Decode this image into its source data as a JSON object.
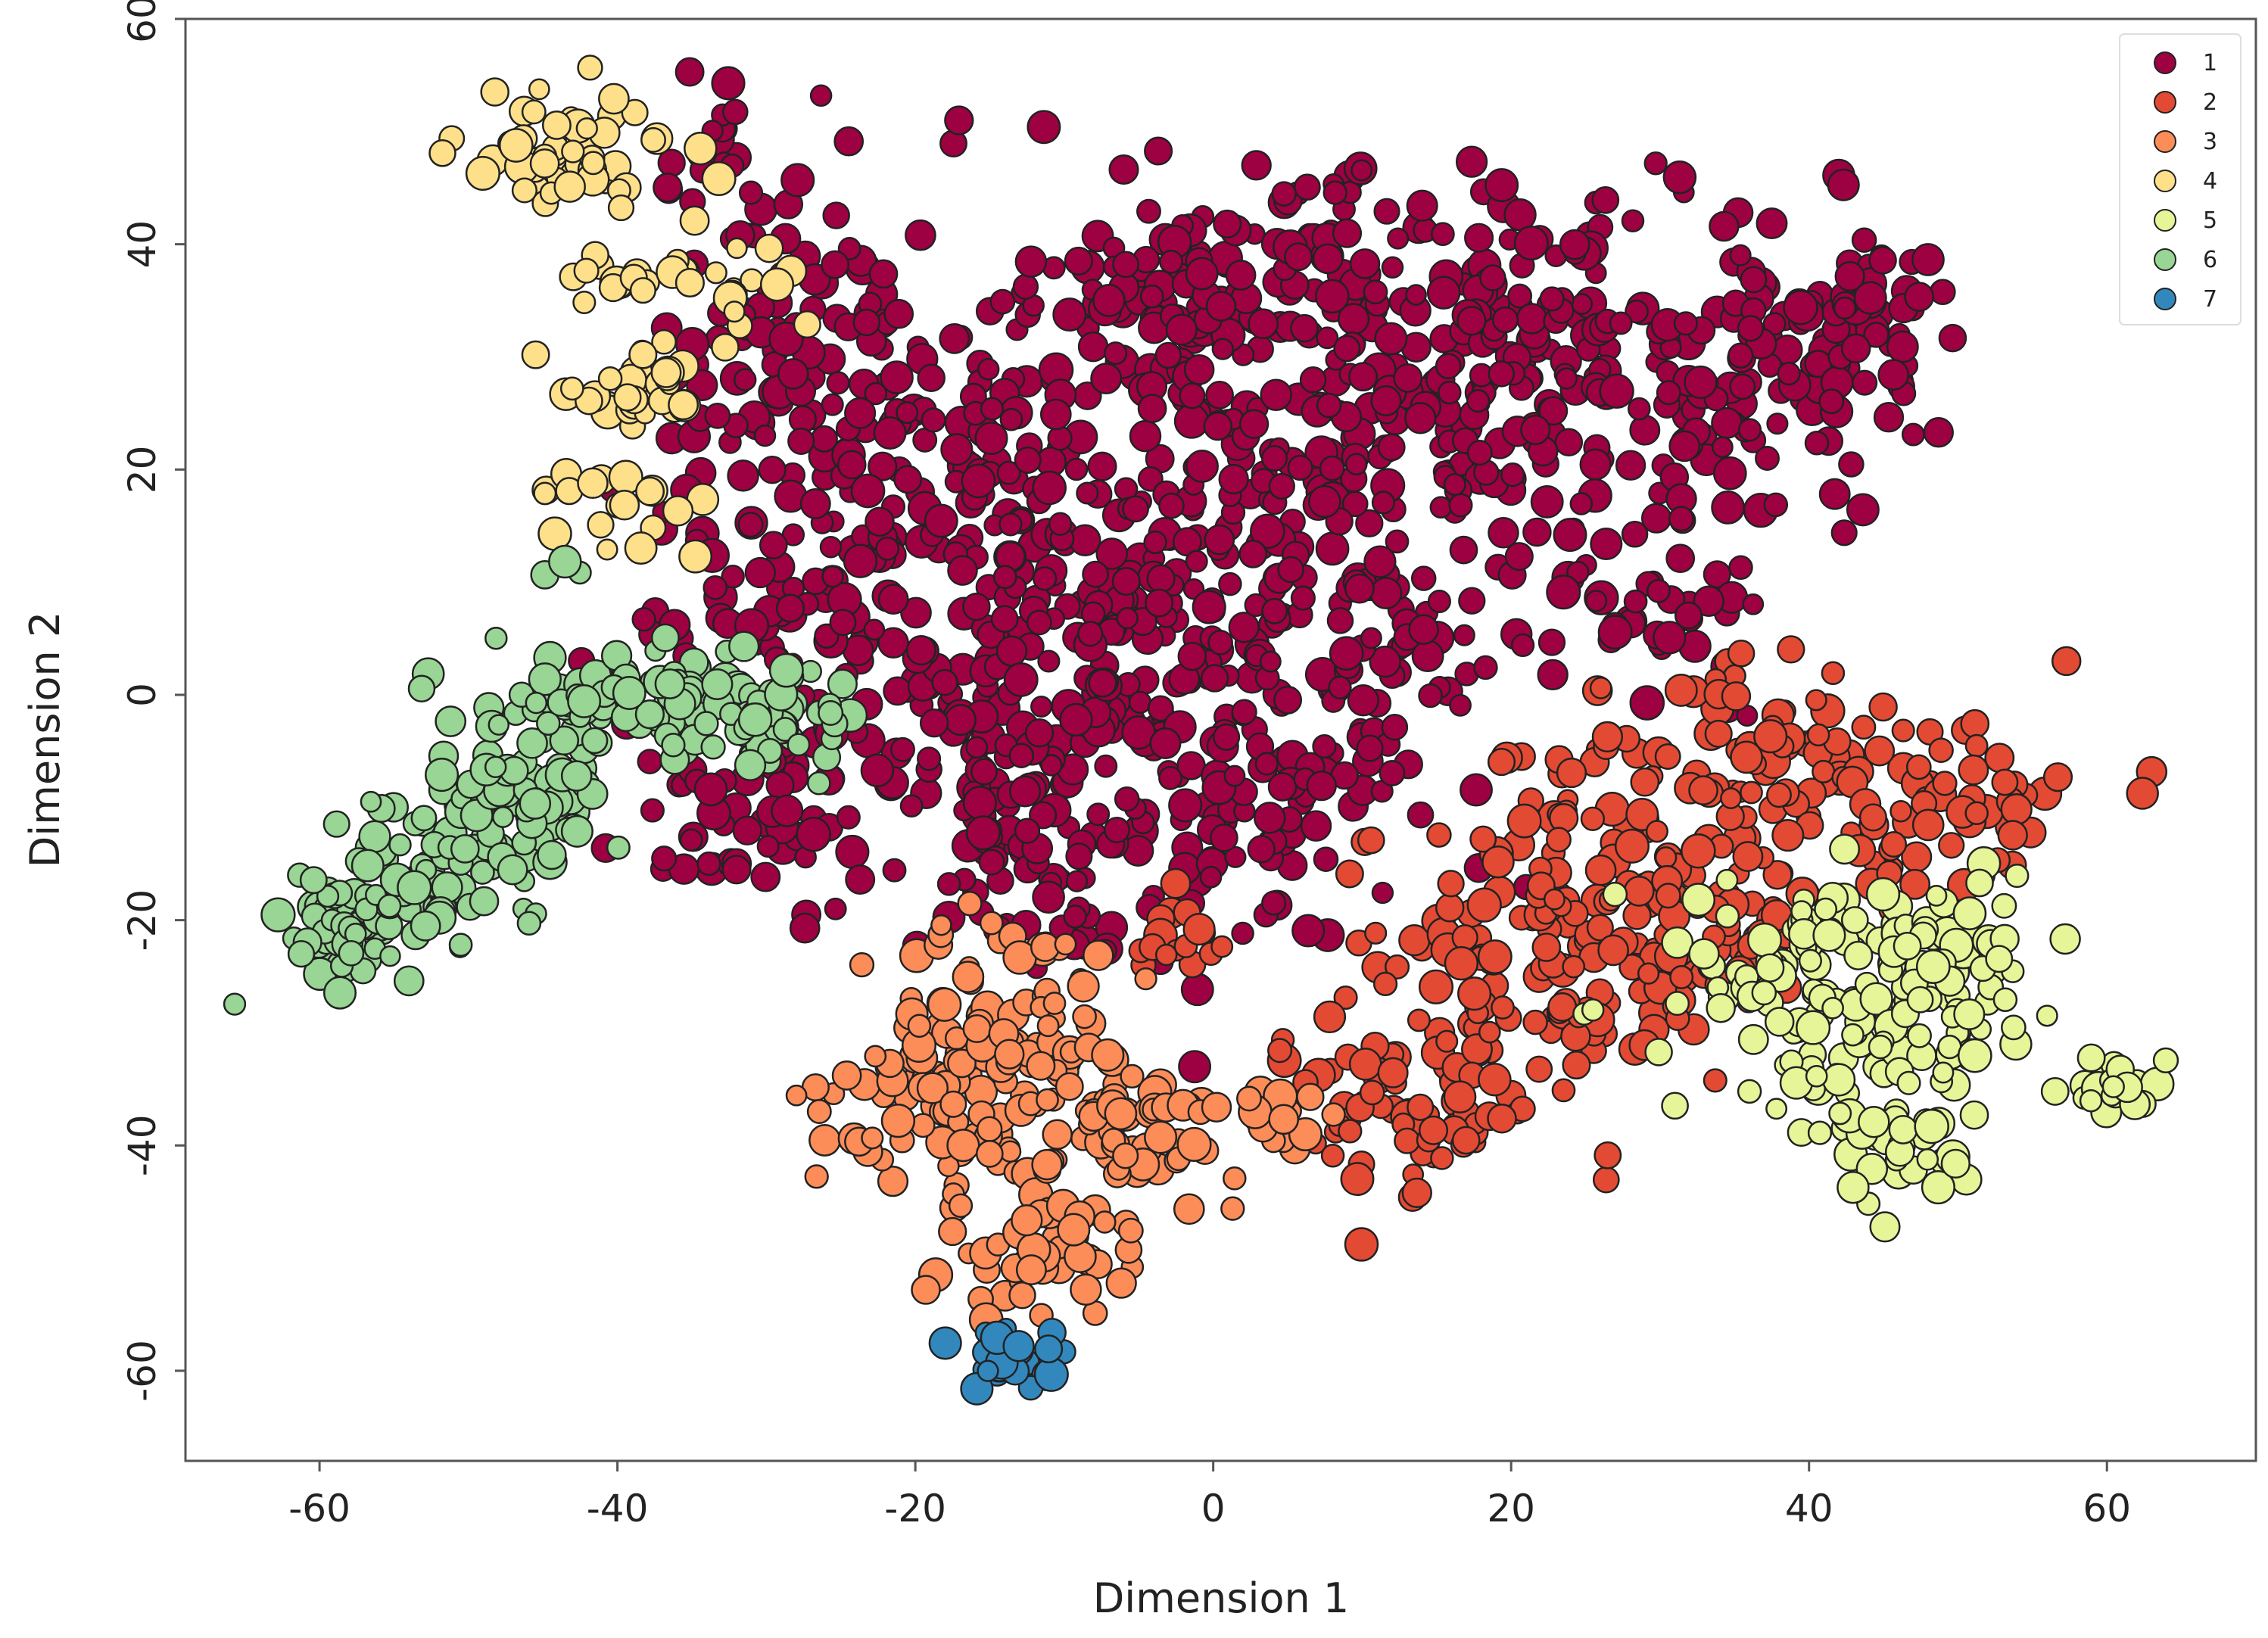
{
  "chart_data": {
    "type": "scatter",
    "title": "",
    "xlabel": "Dimension 1",
    "ylabel": "Dimension 2",
    "xlim": [
      -69,
      70
    ],
    "ylim": [
      -68,
      60
    ],
    "xticks": [
      -60,
      -40,
      -20,
      0,
      20,
      40,
      60
    ],
    "yticks": [
      -60,
      -40,
      -20,
      0,
      20,
      40,
      60
    ],
    "grid": false,
    "legend_position": "top-right",
    "marker_edge_color": "#222222",
    "series": [
      {
        "name": "1",
        "color": "#9e0142",
        "blobs": [
          {
            "cx": -28,
            "cy": 30,
            "sx": 4,
            "sy": 8,
            "n": 80
          },
          {
            "cx": -20,
            "cy": 25,
            "sx": 5,
            "sy": 10,
            "n": 70
          },
          {
            "cx": -30,
            "cy": 8,
            "sx": 5,
            "sy": 6,
            "n": 70
          },
          {
            "cx": -33,
            "cy": 47,
            "sx": 2,
            "sy": 6,
            "n": 25
          },
          {
            "cx": -32,
            "cy": -12,
            "sx": 4,
            "sy": 4,
            "n": 45
          },
          {
            "cx": -16,
            "cy": -8,
            "sx": 6,
            "sy": 6,
            "n": 80
          },
          {
            "cx": -12,
            "cy": 8,
            "sx": 6,
            "sy": 10,
            "n": 100
          },
          {
            "cx": -8,
            "cy": 30,
            "sx": 6,
            "sy": 7,
            "n": 60
          },
          {
            "cx": 0,
            "cy": 30,
            "sx": 5,
            "sy": 8,
            "n": 80
          },
          {
            "cx": -3,
            "cy": 5,
            "sx": 7,
            "sy": 9,
            "n": 110
          },
          {
            "cx": -8,
            "cy": -14,
            "sx": 6,
            "sy": 5,
            "n": 60
          },
          {
            "cx": 2,
            "cy": -8,
            "sx": 4,
            "sy": 8,
            "n": 50
          },
          {
            "cx": 8,
            "cy": 18,
            "sx": 6,
            "sy": 9,
            "n": 90
          },
          {
            "cx": 10,
            "cy": 36,
            "sx": 8,
            "sy": 5,
            "n": 70
          },
          {
            "cx": 18,
            "cy": 26,
            "sx": 6,
            "sy": 8,
            "n": 90
          },
          {
            "cx": 28,
            "cy": 28,
            "sx": 6,
            "sy": 8,
            "n": 100
          },
          {
            "cx": 38,
            "cy": 30,
            "sx": 6,
            "sy": 6,
            "n": 90
          },
          {
            "cx": 45,
            "cy": 34,
            "sx": 3,
            "sy": 3,
            "n": 35
          },
          {
            "cx": 12,
            "cy": 0,
            "sx": 5,
            "sy": 8,
            "n": 60
          },
          {
            "cx": 30,
            "cy": 8,
            "sx": 4,
            "sy": 4,
            "n": 35
          },
          {
            "cx": 7,
            "cy": 46,
            "sx": 2,
            "sy": 1.5,
            "n": 10
          }
        ]
      },
      {
        "name": "2",
        "color": "#e34a33",
        "blobs": [
          {
            "cx": -2,
            "cy": -22,
            "sx": 2,
            "sy": 2,
            "n": 15
          },
          {
            "cx": 12,
            "cy": -34,
            "sx": 5,
            "sy": 5,
            "n": 60
          },
          {
            "cx": 20,
            "cy": -25,
            "sx": 5,
            "sy": 6,
            "n": 70
          },
          {
            "cx": 28,
            "cy": -14,
            "sx": 6,
            "sy": 6,
            "n": 100
          },
          {
            "cx": 32,
            "cy": -24,
            "sx": 5,
            "sy": 5,
            "n": 60
          },
          {
            "cx": 40,
            "cy": -6,
            "sx": 4,
            "sy": 5,
            "n": 70
          },
          {
            "cx": 50,
            "cy": -10,
            "sx": 4,
            "sy": 5,
            "n": 50
          },
          {
            "cx": 12,
            "cy": -40,
            "sx": 3,
            "sy": 2,
            "n": 15
          },
          {
            "cx": 18,
            "cy": -38,
            "sx": 2,
            "sy": 2,
            "n": 12
          }
        ]
      },
      {
        "name": "3",
        "color": "#fc8d59",
        "blobs": [
          {
            "cx": -18,
            "cy": -34,
            "sx": 5,
            "sy": 5,
            "n": 90
          },
          {
            "cx": -12,
            "cy": -30,
            "sx": 4,
            "sy": 4,
            "n": 50
          },
          {
            "cx": -5,
            "cy": -38,
            "sx": 4,
            "sy": 3,
            "n": 60
          },
          {
            "cx": -12,
            "cy": -48,
            "sx": 3,
            "sy": 4,
            "n": 60
          },
          {
            "cx": 5,
            "cy": -38,
            "sx": 2,
            "sy": 2,
            "n": 15
          }
        ]
      },
      {
        "name": "4",
        "color": "#fee08b",
        "blobs": [
          {
            "cx": -43,
            "cy": 48,
            "sx": 4,
            "sy": 3,
            "n": 60
          },
          {
            "cx": -39,
            "cy": 27,
            "sx": 3,
            "sy": 2,
            "n": 35
          },
          {
            "cx": -39,
            "cy": 17,
            "sx": 3,
            "sy": 2,
            "n": 20
          },
          {
            "cx": -40,
            "cy": 37,
            "sx": 2,
            "sy": 1.5,
            "n": 15
          },
          {
            "cx": -32,
            "cy": 36,
            "sx": 3,
            "sy": 2,
            "n": 15
          }
        ]
      },
      {
        "name": "5",
        "color": "#e6f598",
        "blobs": [
          {
            "cx": 42,
            "cy": -26,
            "sx": 5,
            "sy": 5,
            "n": 120
          },
          {
            "cx": 46,
            "cy": -38,
            "sx": 3,
            "sy": 4,
            "n": 50
          },
          {
            "cx": 50,
            "cy": -24,
            "sx": 3,
            "sy": 4,
            "n": 40
          },
          {
            "cx": 60,
            "cy": -35,
            "sx": 2,
            "sy": 1.2,
            "n": 25
          }
        ]
      },
      {
        "name": "6",
        "color": "#99d594",
        "blobs": [
          {
            "cx": -58,
            "cy": -21,
            "sx": 2.5,
            "sy": 2.5,
            "n": 60
          },
          {
            "cx": -52,
            "cy": -15,
            "sx": 3,
            "sy": 3,
            "n": 60
          },
          {
            "cx": -46,
            "cy": -8,
            "sx": 3,
            "sy": 5,
            "n": 80
          },
          {
            "cx": -38,
            "cy": 0,
            "sx": 5,
            "sy": 2,
            "n": 70
          },
          {
            "cx": -30,
            "cy": -2,
            "sx": 3,
            "sy": 3,
            "n": 40
          },
          {
            "cx": -44,
            "cy": 11,
            "sx": 1,
            "sy": 1,
            "n": 3
          }
        ]
      },
      {
        "name": "7",
        "color": "#3288bd",
        "blobs": [
          {
            "cx": -14,
            "cy": -59,
            "sx": 1.5,
            "sy": 1.5,
            "n": 25
          }
        ]
      }
    ]
  }
}
